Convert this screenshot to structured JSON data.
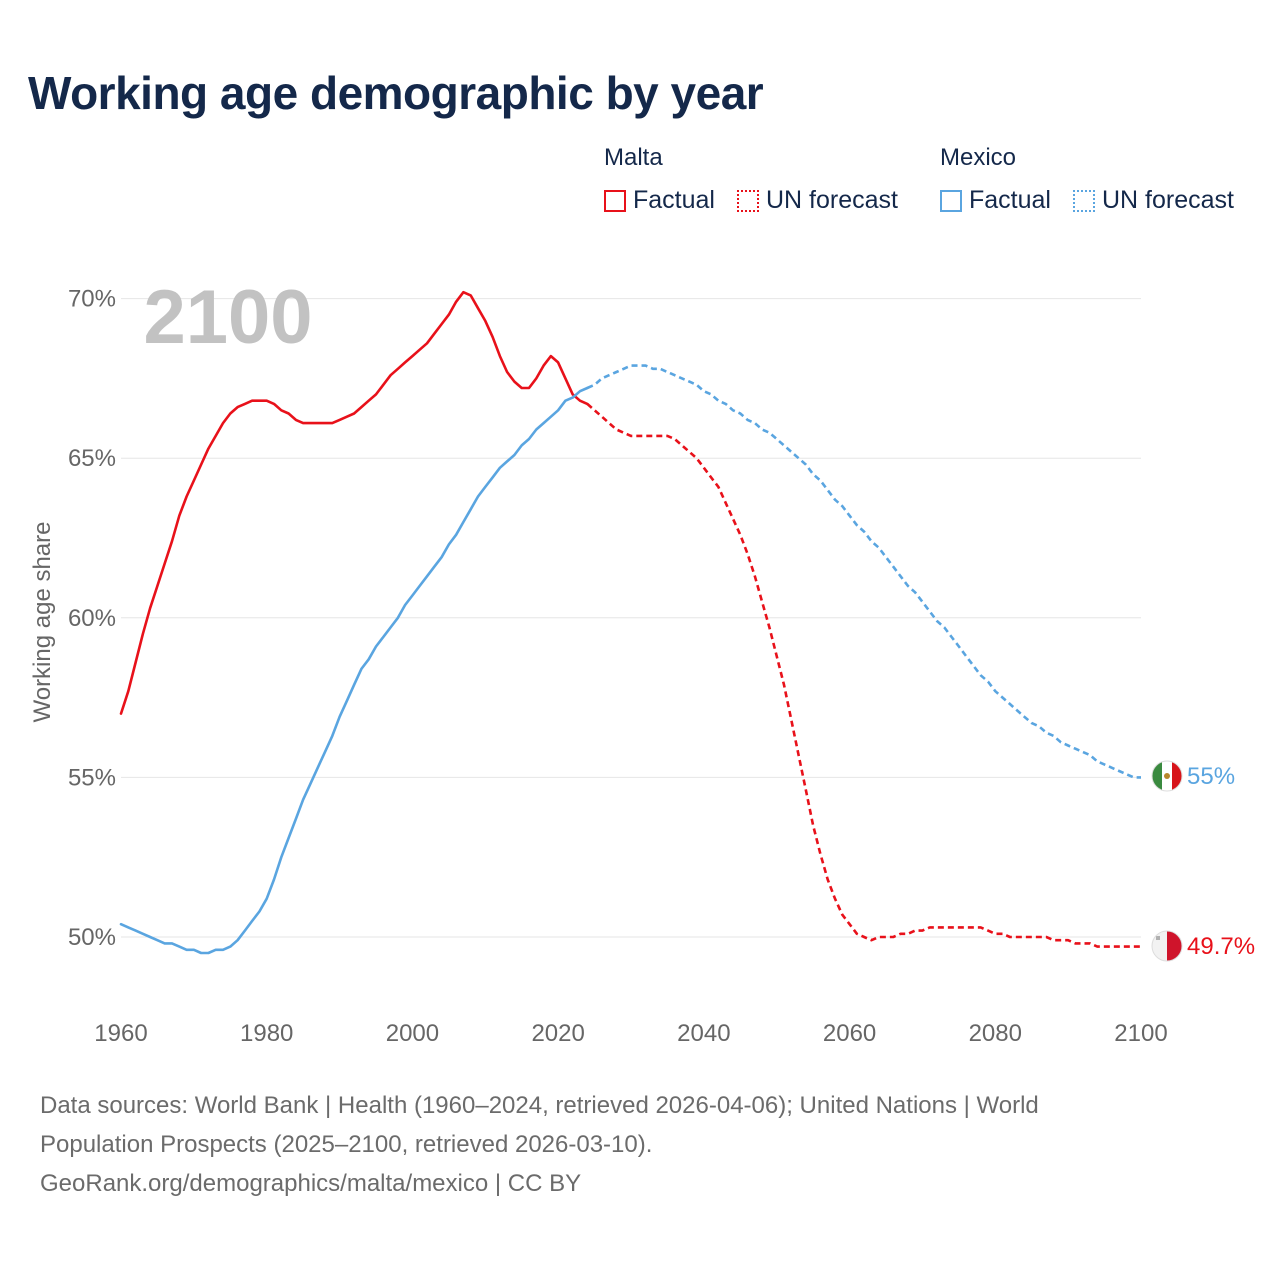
{
  "title": "Working age demographic by year",
  "legend": {
    "malta": {
      "name": "Malta",
      "factual": "Factual",
      "forecast": "UN forecast",
      "color": "#e8111a"
    },
    "mexico": {
      "name": "Mexico",
      "factual": "Factual",
      "forecast": "UN forecast",
      "color": "#5aa5e0"
    }
  },
  "chart_data": {
    "type": "line",
    "title": "Working age demographic by year",
    "xlabel": "",
    "ylabel": "Working age share",
    "xlim": [
      1960,
      2100
    ],
    "ylim": [
      48.5,
      71.5
    ],
    "x_ticks": [
      "1960",
      "1980",
      "2000",
      "2020",
      "2040",
      "2060",
      "2080",
      "2100"
    ],
    "y_ticks": [
      {
        "value": 50,
        "label": "50%"
      },
      {
        "value": 55,
        "label": "55%"
      },
      {
        "value": 60,
        "label": "60%"
      },
      {
        "value": 65,
        "label": "65%"
      },
      {
        "value": 70,
        "label": "70%"
      }
    ],
    "year_watermark": "2100",
    "factual_end_year": 2024,
    "series": [
      {
        "name": "Malta",
        "color": "#e8111a",
        "end_label": "49.7%",
        "points": [
          [
            1960,
            57.0
          ],
          [
            1961,
            57.7
          ],
          [
            1962,
            58.6
          ],
          [
            1963,
            59.5
          ],
          [
            1964,
            60.3
          ],
          [
            1965,
            61.0
          ],
          [
            1966,
            61.7
          ],
          [
            1967,
            62.4
          ],
          [
            1968,
            63.2
          ],
          [
            1969,
            63.8
          ],
          [
            1970,
            64.3
          ],
          [
            1971,
            64.8
          ],
          [
            1972,
            65.3
          ],
          [
            1973,
            65.7
          ],
          [
            1974,
            66.1
          ],
          [
            1975,
            66.4
          ],
          [
            1976,
            66.6
          ],
          [
            1977,
            66.7
          ],
          [
            1978,
            66.8
          ],
          [
            1979,
            66.8
          ],
          [
            1980,
            66.8
          ],
          [
            1981,
            66.7
          ],
          [
            1982,
            66.5
          ],
          [
            1983,
            66.4
          ],
          [
            1984,
            66.2
          ],
          [
            1985,
            66.1
          ],
          [
            1986,
            66.1
          ],
          [
            1987,
            66.1
          ],
          [
            1988,
            66.1
          ],
          [
            1989,
            66.1
          ],
          [
            1990,
            66.2
          ],
          [
            1991,
            66.3
          ],
          [
            1992,
            66.4
          ],
          [
            1993,
            66.6
          ],
          [
            1994,
            66.8
          ],
          [
            1995,
            67.0
          ],
          [
            1996,
            67.3
          ],
          [
            1997,
            67.6
          ],
          [
            1998,
            67.8
          ],
          [
            1999,
            68.0
          ],
          [
            2000,
            68.2
          ],
          [
            2001,
            68.4
          ],
          [
            2002,
            68.6
          ],
          [
            2003,
            68.9
          ],
          [
            2004,
            69.2
          ],
          [
            2005,
            69.5
          ],
          [
            2006,
            69.9
          ],
          [
            2007,
            70.2
          ],
          [
            2008,
            70.1
          ],
          [
            2009,
            69.7
          ],
          [
            2010,
            69.3
          ],
          [
            2011,
            68.8
          ],
          [
            2012,
            68.2
          ],
          [
            2013,
            67.7
          ],
          [
            2014,
            67.4
          ],
          [
            2015,
            67.2
          ],
          [
            2016,
            67.2
          ],
          [
            2017,
            67.5
          ],
          [
            2018,
            67.9
          ],
          [
            2019,
            68.2
          ],
          [
            2020,
            68.0
          ],
          [
            2021,
            67.5
          ],
          [
            2022,
            67.0
          ],
          [
            2023,
            66.8
          ],
          [
            2024,
            66.7
          ],
          [
            2025,
            66.5
          ],
          [
            2026,
            66.3
          ],
          [
            2027,
            66.1
          ],
          [
            2028,
            65.9
          ],
          [
            2029,
            65.8
          ],
          [
            2030,
            65.7
          ],
          [
            2031,
            65.7
          ],
          [
            2032,
            65.7
          ],
          [
            2033,
            65.7
          ],
          [
            2034,
            65.7
          ],
          [
            2035,
            65.7
          ],
          [
            2036,
            65.6
          ],
          [
            2037,
            65.4
          ],
          [
            2038,
            65.2
          ],
          [
            2039,
            65.0
          ],
          [
            2040,
            64.7
          ],
          [
            2041,
            64.4
          ],
          [
            2042,
            64.1
          ],
          [
            2043,
            63.6
          ],
          [
            2044,
            63.1
          ],
          [
            2045,
            62.6
          ],
          [
            2046,
            62.0
          ],
          [
            2047,
            61.3
          ],
          [
            2048,
            60.5
          ],
          [
            2049,
            59.7
          ],
          [
            2050,
            58.8
          ],
          [
            2051,
            57.9
          ],
          [
            2052,
            56.8
          ],
          [
            2053,
            55.7
          ],
          [
            2054,
            54.6
          ],
          [
            2055,
            53.5
          ],
          [
            2056,
            52.6
          ],
          [
            2057,
            51.8
          ],
          [
            2058,
            51.2
          ],
          [
            2059,
            50.7
          ],
          [
            2060,
            50.4
          ],
          [
            2061,
            50.1
          ],
          [
            2062,
            50.0
          ],
          [
            2063,
            49.9
          ],
          [
            2064,
            50.0
          ],
          [
            2065,
            50.0
          ],
          [
            2066,
            50.0
          ],
          [
            2067,
            50.1
          ],
          [
            2068,
            50.1
          ],
          [
            2069,
            50.2
          ],
          [
            2070,
            50.2
          ],
          [
            2071,
            50.3
          ],
          [
            2072,
            50.3
          ],
          [
            2073,
            50.3
          ],
          [
            2074,
            50.3
          ],
          [
            2075,
            50.3
          ],
          [
            2076,
            50.3
          ],
          [
            2077,
            50.3
          ],
          [
            2078,
            50.3
          ],
          [
            2079,
            50.2
          ],
          [
            2080,
            50.1
          ],
          [
            2081,
            50.1
          ],
          [
            2082,
            50.0
          ],
          [
            2083,
            50.0
          ],
          [
            2084,
            50.0
          ],
          [
            2085,
            50.0
          ],
          [
            2086,
            50.0
          ],
          [
            2087,
            50.0
          ],
          [
            2088,
            49.9
          ],
          [
            2089,
            49.9
          ],
          [
            2090,
            49.9
          ],
          [
            2091,
            49.8
          ],
          [
            2092,
            49.8
          ],
          [
            2093,
            49.8
          ],
          [
            2094,
            49.7
          ],
          [
            2095,
            49.7
          ],
          [
            2096,
            49.7
          ],
          [
            2097,
            49.7
          ],
          [
            2098,
            49.7
          ],
          [
            2099,
            49.7
          ],
          [
            2100,
            49.7
          ]
        ]
      },
      {
        "name": "Mexico",
        "color": "#5aa5e0",
        "end_label": "55%",
        "points": [
          [
            1960,
            50.4
          ],
          [
            1961,
            50.3
          ],
          [
            1962,
            50.2
          ],
          [
            1963,
            50.1
          ],
          [
            1964,
            50.0
          ],
          [
            1965,
            49.9
          ],
          [
            1966,
            49.8
          ],
          [
            1967,
            49.8
          ],
          [
            1968,
            49.7
          ],
          [
            1969,
            49.6
          ],
          [
            1970,
            49.6
          ],
          [
            1971,
            49.5
          ],
          [
            1972,
            49.5
          ],
          [
            1973,
            49.6
          ],
          [
            1974,
            49.6
          ],
          [
            1975,
            49.7
          ],
          [
            1976,
            49.9
          ],
          [
            1977,
            50.2
          ],
          [
            1978,
            50.5
          ],
          [
            1979,
            50.8
          ],
          [
            1980,
            51.2
          ],
          [
            1981,
            51.8
          ],
          [
            1982,
            52.5
          ],
          [
            1983,
            53.1
          ],
          [
            1984,
            53.7
          ],
          [
            1985,
            54.3
          ],
          [
            1986,
            54.8
          ],
          [
            1987,
            55.3
          ],
          [
            1988,
            55.8
          ],
          [
            1989,
            56.3
          ],
          [
            1990,
            56.9
          ],
          [
            1991,
            57.4
          ],
          [
            1992,
            57.9
          ],
          [
            1993,
            58.4
          ],
          [
            1994,
            58.7
          ],
          [
            1995,
            59.1
          ],
          [
            1996,
            59.4
          ],
          [
            1997,
            59.7
          ],
          [
            1998,
            60.0
          ],
          [
            1999,
            60.4
          ],
          [
            2000,
            60.7
          ],
          [
            2001,
            61.0
          ],
          [
            2002,
            61.3
          ],
          [
            2003,
            61.6
          ],
          [
            2004,
            61.9
          ],
          [
            2005,
            62.3
          ],
          [
            2006,
            62.6
          ],
          [
            2007,
            63.0
          ],
          [
            2008,
            63.4
          ],
          [
            2009,
            63.8
          ],
          [
            2010,
            64.1
          ],
          [
            2011,
            64.4
          ],
          [
            2012,
            64.7
          ],
          [
            2013,
            64.9
          ],
          [
            2014,
            65.1
          ],
          [
            2015,
            65.4
          ],
          [
            2016,
            65.6
          ],
          [
            2017,
            65.9
          ],
          [
            2018,
            66.1
          ],
          [
            2019,
            66.3
          ],
          [
            2020,
            66.5
          ],
          [
            2021,
            66.8
          ],
          [
            2022,
            66.9
          ],
          [
            2023,
            67.1
          ],
          [
            2024,
            67.2
          ],
          [
            2025,
            67.3
          ],
          [
            2026,
            67.5
          ],
          [
            2027,
            67.6
          ],
          [
            2028,
            67.7
          ],
          [
            2029,
            67.8
          ],
          [
            2030,
            67.9
          ],
          [
            2031,
            67.9
          ],
          [
            2032,
            67.9
          ],
          [
            2033,
            67.8
          ],
          [
            2034,
            67.8
          ],
          [
            2035,
            67.7
          ],
          [
            2036,
            67.6
          ],
          [
            2037,
            67.5
          ],
          [
            2038,
            67.4
          ],
          [
            2039,
            67.3
          ],
          [
            2040,
            67.1
          ],
          [
            2041,
            67.0
          ],
          [
            2042,
            66.8
          ],
          [
            2043,
            66.7
          ],
          [
            2044,
            66.5
          ],
          [
            2045,
            66.4
          ],
          [
            2046,
            66.2
          ],
          [
            2047,
            66.1
          ],
          [
            2048,
            65.9
          ],
          [
            2049,
            65.8
          ],
          [
            2050,
            65.6
          ],
          [
            2051,
            65.4
          ],
          [
            2052,
            65.2
          ],
          [
            2053,
            65.0
          ],
          [
            2054,
            64.8
          ],
          [
            2055,
            64.5
          ],
          [
            2056,
            64.3
          ],
          [
            2057,
            64.0
          ],
          [
            2058,
            63.7
          ],
          [
            2059,
            63.5
          ],
          [
            2060,
            63.2
          ],
          [
            2061,
            62.9
          ],
          [
            2062,
            62.7
          ],
          [
            2063,
            62.4
          ],
          [
            2064,
            62.2
          ],
          [
            2065,
            61.9
          ],
          [
            2066,
            61.6
          ],
          [
            2067,
            61.3
          ],
          [
            2068,
            61.0
          ],
          [
            2069,
            60.8
          ],
          [
            2070,
            60.5
          ],
          [
            2071,
            60.2
          ],
          [
            2072,
            59.9
          ],
          [
            2073,
            59.7
          ],
          [
            2074,
            59.4
          ],
          [
            2075,
            59.1
          ],
          [
            2076,
            58.8
          ],
          [
            2077,
            58.5
          ],
          [
            2078,
            58.2
          ],
          [
            2079,
            58.0
          ],
          [
            2080,
            57.7
          ],
          [
            2081,
            57.5
          ],
          [
            2082,
            57.3
          ],
          [
            2083,
            57.1
          ],
          [
            2084,
            56.9
          ],
          [
            2085,
            56.7
          ],
          [
            2086,
            56.6
          ],
          [
            2087,
            56.4
          ],
          [
            2088,
            56.3
          ],
          [
            2089,
            56.1
          ],
          [
            2090,
            56.0
          ],
          [
            2091,
            55.9
          ],
          [
            2092,
            55.8
          ],
          [
            2093,
            55.7
          ],
          [
            2094,
            55.5
          ],
          [
            2095,
            55.4
          ],
          [
            2096,
            55.3
          ],
          [
            2097,
            55.2
          ],
          [
            2098,
            55.1
          ],
          [
            2099,
            55.0
          ],
          [
            2100,
            55.0
          ]
        ]
      }
    ]
  },
  "source": {
    "line1": "Data sources: World Bank | Health (1960–2024, retrieved 2026-04-06); United Nations | World",
    "line2": "Population Prospects (2025–2100, retrieved 2026-03-10).",
    "line3": "GeoRank.org/demographics/malta/mexico | CC BY"
  }
}
